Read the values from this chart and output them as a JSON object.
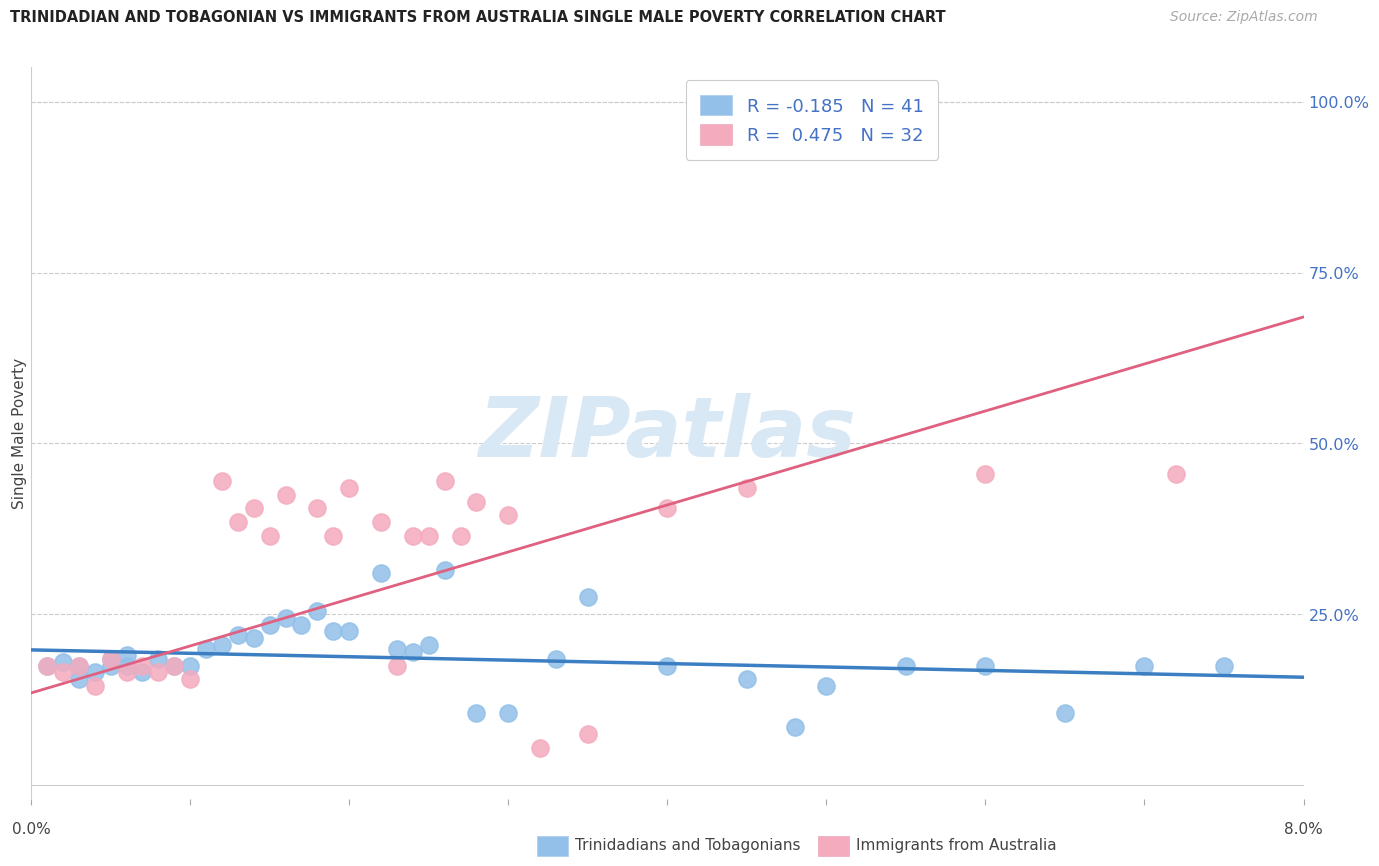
{
  "title": "TRINIDADIAN AND TOBAGONIAN VS IMMIGRANTS FROM AUSTRALIA SINGLE MALE POVERTY CORRELATION CHART",
  "source": "Source: ZipAtlas.com",
  "ylabel": "Single Male Poverty",
  "legend_blue_r": "-0.185",
  "legend_blue_n": "41",
  "legend_pink_r": "0.475",
  "legend_pink_n": "32",
  "legend_blue_label": "Trinidadians and Tobagonians",
  "legend_pink_label": "Immigrants from Australia",
  "blue_color": "#92C0E8",
  "pink_color": "#F4ABBE",
  "blue_line_color": "#3B7EC2",
  "pink_line_color": "#E06080",
  "text_blue_color": "#4472C4",
  "background_color": "#FFFFFF",
  "grid_color": "#CCCCCC",
  "watermark_color": "#D8E8F5",
  "blue_points_x": [
    0.001,
    0.002,
    0.003,
    0.003,
    0.004,
    0.005,
    0.005,
    0.006,
    0.006,
    0.007,
    0.008,
    0.009,
    0.01,
    0.011,
    0.012,
    0.013,
    0.014,
    0.015,
    0.016,
    0.017,
    0.018,
    0.019,
    0.02,
    0.022,
    0.023,
    0.024,
    0.025,
    0.026,
    0.028,
    0.03,
    0.033,
    0.035,
    0.04,
    0.045,
    0.048,
    0.05,
    0.055,
    0.06,
    0.065,
    0.07,
    0.075
  ],
  "blue_points_y": [
    0.175,
    0.18,
    0.155,
    0.175,
    0.165,
    0.175,
    0.185,
    0.175,
    0.19,
    0.165,
    0.185,
    0.175,
    0.175,
    0.2,
    0.205,
    0.22,
    0.215,
    0.235,
    0.245,
    0.235,
    0.255,
    0.225,
    0.225,
    0.31,
    0.2,
    0.195,
    0.205,
    0.315,
    0.105,
    0.105,
    0.185,
    0.275,
    0.175,
    0.155,
    0.085,
    0.145,
    0.175,
    0.175,
    0.105,
    0.175,
    0.175
  ],
  "pink_points_x": [
    0.001,
    0.002,
    0.003,
    0.004,
    0.005,
    0.006,
    0.007,
    0.008,
    0.009,
    0.01,
    0.012,
    0.013,
    0.014,
    0.015,
    0.016,
    0.018,
    0.019,
    0.02,
    0.022,
    0.023,
    0.024,
    0.025,
    0.026,
    0.027,
    0.028,
    0.03,
    0.032,
    0.035,
    0.04,
    0.045,
    0.06,
    0.072
  ],
  "pink_points_y": [
    0.175,
    0.165,
    0.175,
    0.145,
    0.185,
    0.165,
    0.175,
    0.165,
    0.175,
    0.155,
    0.445,
    0.385,
    0.405,
    0.365,
    0.425,
    0.405,
    0.365,
    0.435,
    0.385,
    0.175,
    0.365,
    0.365,
    0.445,
    0.365,
    0.415,
    0.395,
    0.055,
    0.075,
    0.405,
    0.435,
    0.455,
    0.455
  ],
  "xlim": [
    0.0,
    0.08
  ],
  "ylim": [
    -0.02,
    1.05
  ],
  "right_ytick_vals": [
    0.25,
    0.5,
    0.75,
    1.0
  ],
  "right_ytick_labels": [
    "25.0%",
    "50.0%",
    "75.0%",
    "100.0%"
  ],
  "blue_trend": [
    0.0,
    0.08,
    0.198,
    0.158
  ],
  "pink_trend": [
    0.0,
    0.08,
    0.135,
    0.685
  ]
}
